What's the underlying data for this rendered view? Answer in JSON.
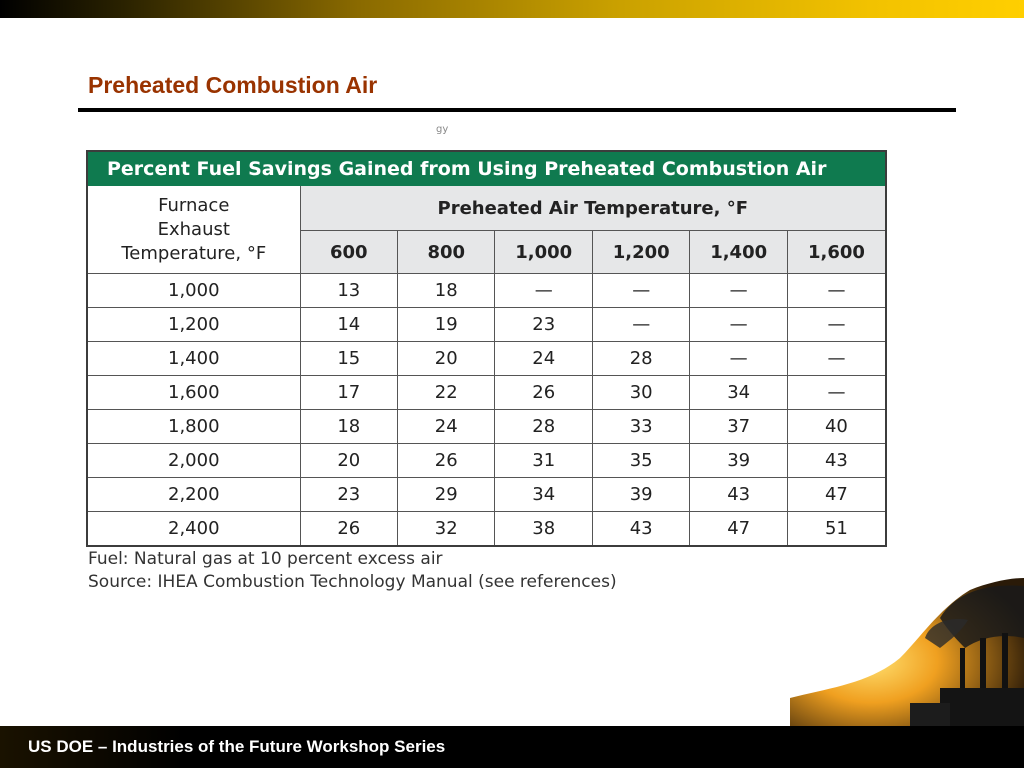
{
  "slide": {
    "title": "Preheated Combustion Air",
    "faint_mark": "gy",
    "footer": "US DOE – Industries of the Future Workshop Series"
  },
  "table": {
    "caption": "Percent Fuel Savings Gained from Using Preheated Combustion Air",
    "row_header_lines": [
      "Furnace",
      "Exhaust",
      "Temperature, °F"
    ],
    "group_header": "Preheated Air Temperature, °F",
    "columns": [
      "600",
      "800",
      "1,000",
      "1,200",
      "1,400",
      "1,600"
    ],
    "rows": [
      {
        "exhaust": "1,000",
        "values": [
          "13",
          "18",
          "—",
          "—",
          "—",
          "—"
        ]
      },
      {
        "exhaust": "1,200",
        "values": [
          "14",
          "19",
          "23",
          "—",
          "—",
          "—"
        ]
      },
      {
        "exhaust": "1,400",
        "values": [
          "15",
          "20",
          "24",
          "28",
          "—",
          "—"
        ]
      },
      {
        "exhaust": "1,600",
        "values": [
          "17",
          "22",
          "26",
          "30",
          "34",
          "—"
        ]
      },
      {
        "exhaust": "1,800",
        "values": [
          "18",
          "24",
          "28",
          "33",
          "37",
          "40"
        ]
      },
      {
        "exhaust": "2,000",
        "values": [
          "20",
          "26",
          "31",
          "35",
          "39",
          "43"
        ]
      },
      {
        "exhaust": "2,200",
        "values": [
          "23",
          "29",
          "34",
          "39",
          "43",
          "47"
        ]
      },
      {
        "exhaust": "2,400",
        "values": [
          "26",
          "32",
          "38",
          "43",
          "47",
          "51"
        ]
      }
    ],
    "footnotes": [
      "Fuel: Natural gas at 10 percent excess air",
      "Source: IHEA Combustion Technology Manual (see references)"
    ]
  },
  "colors": {
    "title": "#993300",
    "table_header_bg": "#0f7a4f",
    "column_header_bg": "#e6e7e8",
    "top_band_end": "#ffcf00"
  }
}
